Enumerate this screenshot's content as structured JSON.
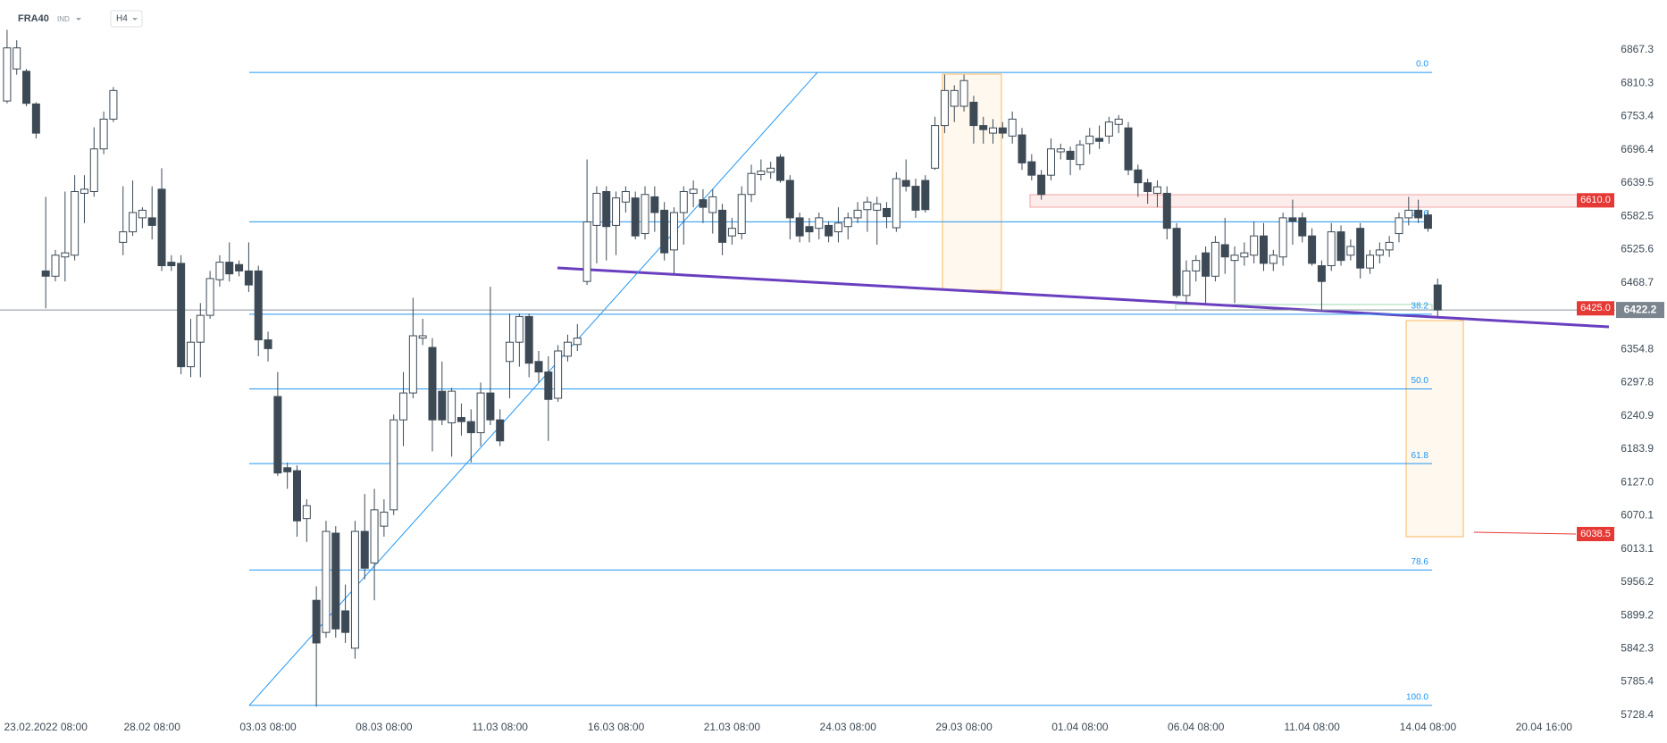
{
  "header": {
    "symbol": "FRA40",
    "market": "IND",
    "timeframe": "H4"
  },
  "chart_data": {
    "type": "candlestick",
    "categories": [
      null,
      null,
      null,
      null,
      "23.02.2022 08:00",
      null,
      null,
      null,
      null,
      null,
      null,
      null,
      null,
      null,
      null,
      "28.02 08:00",
      null,
      null,
      null,
      null,
      null,
      null,
      null,
      null,
      null,
      null,
      null,
      "03.03 08:00",
      null,
      null,
      null,
      null,
      null,
      null,
      null,
      null,
      null,
      null,
      null,
      "08.03 08:00",
      null,
      null,
      null,
      null,
      null,
      null,
      null,
      null,
      null,
      null,
      null,
      "11.03 08:00",
      null,
      null,
      null,
      null,
      null,
      null,
      null,
      null,
      null,
      null,
      null,
      "16.03 08:00",
      null,
      null,
      null,
      null,
      null,
      null,
      null,
      null,
      null,
      null,
      null,
      "21.03 08:00",
      null,
      null,
      null,
      null,
      null,
      null,
      null,
      null,
      null,
      null,
      null,
      "24.03 08:00",
      null,
      null,
      null,
      null,
      null,
      null,
      null,
      null,
      null,
      null,
      null,
      "29.03 08:00",
      null,
      null,
      null,
      null,
      null,
      null,
      null,
      null,
      null,
      null,
      null,
      "01.04 08:00",
      null,
      null,
      null,
      null,
      null,
      null,
      null,
      null,
      null,
      null,
      null,
      "06.04 08:00",
      null,
      null,
      null,
      null,
      null,
      null,
      null,
      null,
      null,
      null,
      null,
      "11.04 08:00",
      null,
      null,
      null,
      null,
      null,
      null,
      null,
      null,
      null,
      null,
      null,
      "14.04 08:00",
      null,
      null,
      null,
      null,
      null,
      null,
      null,
      null,
      null,
      null,
      null,
      "20.04 16:00"
    ],
    "open": [
      6780,
      6835,
      6831,
      6775,
      6489,
      6480,
      6513,
      6516,
      6622,
      6625,
      6698,
      6749,
      6538,
      6556,
      6580,
      6580,
      6629,
      6504,
      6502,
      6325,
      6367,
      6413,
      6474,
      6504,
      6500,
      6489,
      6489,
      6371,
      6274,
      6152,
      6147,
      6065,
      5925,
      5870,
      6040,
      5907,
      5843,
      6043,
      5989,
      6052,
      6080,
      6234,
      6280,
      6374,
      6358,
      6283,
      6229,
      6238,
      6231,
      6212,
      6280,
      6234,
      6334,
      6367,
      6411,
      6334,
      6316,
      6271,
      6343,
      6363,
      6471,
      6567,
      6625,
      6567,
      6607,
      6614,
      6553,
      6616,
      6593,
      6525,
      6589,
      6622,
      6611,
      6589,
      6593,
      6549,
      6553,
      6620,
      6654,
      6658,
      6684,
      6644,
      6580,
      6565,
      6562,
      6567,
      6556,
      6565,
      6580,
      6594,
      6593,
      6596,
      6563,
      6644,
      6634,
      6644,
      6665,
      6738,
      6771,
      6771,
      6778,
      6738,
      6725,
      6734,
      6720,
      6722,
      6676,
      6653,
      6653,
      6693,
      6694,
      6671,
      6707,
      6716,
      6720,
      6740,
      6734,
      6662,
      6640,
      6622,
      6622,
      6562,
      6447,
      6489,
      6520,
      6480,
      6534,
      6507,
      6513,
      6516,
      6549,
      6502,
      6513,
      6580,
      6580,
      6549,
      6498,
      6498,
      6556,
      6516,
      6562,
      6494,
      6516,
      6525,
      6553,
      6580,
      6593,
      6585,
      6465,
      null,
      null,
      null,
      null,
      null,
      null,
      null,
      null,
      null,
      null,
      null
    ],
    "high": [
      6902,
      6884,
      6835,
      6778,
      6616,
      6525,
      6625,
      6653,
      6653,
      6735,
      6762,
      6804,
      6634,
      6644,
      6598,
      6634,
      6665,
      6516,
      6516,
      6407,
      6434,
      6489,
      6516,
      6538,
      6507,
      6538,
      6498,
      6385,
      6316,
      6161,
      6156,
      6098,
      5949,
      6061,
      6052,
      5952,
      6061,
      6107,
      6116,
      6098,
      6243,
      6316,
      6443,
      6407,
      6374,
      6334,
      6289,
      6262,
      6252,
      6298,
      6462,
      6252,
      6416,
      6416,
      6416,
      6352,
      6343,
      6362,
      6380,
      6398,
      6680,
      6634,
      6634,
      6625,
      6634,
      6625,
      6634,
      6634,
      6607,
      6598,
      6634,
      6644,
      6629,
      6629,
      6604,
      6580,
      6634,
      6671,
      6680,
      6676,
      6689,
      6653,
      6589,
      6580,
      6589,
      6574,
      6598,
      6589,
      6607,
      6616,
      6616,
      6607,
      6658,
      6680,
      6647,
      6653,
      6753,
      6825,
      6807,
      6825,
      6789,
      6753,
      6749,
      6744,
      6762,
      6734,
      6689,
      6662,
      6716,
      6707,
      6702,
      6713,
      6734,
      6738,
      6753,
      6756,
      6744,
      6671,
      6647,
      6644,
      6634,
      6571,
      6507,
      6516,
      6531,
      6549,
      6580,
      6531,
      6538,
      6574,
      6571,
      6525,
      6589,
      6611,
      6589,
      6562,
      6507,
      6571,
      6567,
      6543,
      6571,
      6525,
      6538,
      6549,
      6589,
      6616,
      6611,
      6593,
      6476,
      null,
      null,
      null,
      null,
      null,
      null,
      null,
      null,
      null,
      null,
      null
    ],
    "low": [
      6776,
      6825,
      6771,
      6716,
      6425,
      6471,
      6471,
      6507,
      6571,
      6616,
      6689,
      6744,
      6516,
      6549,
      6562,
      6543,
      6489,
      6489,
      6312,
      6307,
      6307,
      6407,
      6462,
      6471,
      6480,
      6453,
      6343,
      6334,
      6138,
      6116,
      6034,
      6025,
      5743,
      5861,
      5861,
      5852,
      5825,
      5961,
      5925,
      6034,
      6071,
      6189,
      6271,
      6362,
      6180,
      6225,
      6171,
      6207,
      6161,
      6189,
      6225,
      6189,
      6271,
      6325,
      6307,
      6298,
      6198,
      6265,
      6334,
      6352,
      6465,
      6502,
      6507,
      6516,
      6589,
      6543,
      6543,
      6556,
      6507,
      6484,
      6534,
      6598,
      6571,
      6553,
      6516,
      6534,
      6543,
      6607,
      6644,
      6647,
      6640,
      6543,
      6538,
      6538,
      6543,
      6538,
      6538,
      6543,
      6571,
      6556,
      6534,
      6562,
      6556,
      6625,
      6580,
      6589,
      6662,
      6725,
      6744,
      6762,
      6707,
      6707,
      6707,
      6716,
      6707,
      6662,
      6644,
      6611,
      6644,
      6680,
      6653,
      6662,
      6689,
      6698,
      6707,
      6725,
      6653,
      6616,
      6604,
      6598,
      6543,
      6443,
      6434,
      6471,
      6434,
      6471,
      6484,
      6434,
      6498,
      6502,
      6489,
      6489,
      6498,
      6534,
      6538,
      6498,
      6422,
      6489,
      6498,
      6507,
      6476,
      6484,
      6502,
      6513,
      6538,
      6567,
      6571,
      6556,
      6411,
      null,
      null,
      null,
      null,
      null,
      null,
      null,
      null,
      null,
      null,
      null
    ],
    "close": [
      6871,
      6871,
      6776,
      6725,
      6480,
      6516,
      6520,
      6625,
      6629,
      6698,
      6749,
      6798,
      6556,
      6589,
      6593,
      6567,
      6498,
      6498,
      6325,
      6367,
      6413,
      6476,
      6504,
      6484,
      6489,
      6465,
      6371,
      6356,
      6143,
      6145,
      6061,
      6087,
      5852,
      6043,
      5876,
      5870,
      6043,
      5980,
      6080,
      6076,
      6234,
      6280,
      6378,
      6378,
      6234,
      6234,
      6283,
      6231,
      6212,
      6280,
      6234,
      6198,
      6367,
      6411,
      6331,
      6316,
      6269,
      6352,
      6367,
      6374,
      6573,
      6622,
      6565,
      6614,
      6625,
      6549,
      6620,
      6589,
      6520,
      6589,
      6625,
      6629,
      6598,
      6616,
      6538,
      6562,
      6620,
      6656,
      6660,
      6665,
      6644,
      6580,
      6549,
      6556,
      6580,
      6549,
      6571,
      6580,
      6593,
      6607,
      6604,
      6582,
      6647,
      6634,
      6593,
      6594,
      6738,
      6798,
      6798,
      6815,
      6738,
      6731,
      6734,
      6725,
      6749,
      6674,
      6653,
      6620,
      6698,
      6698,
      6680,
      6705,
      6720,
      6711,
      6744,
      6749,
      6662,
      6640,
      6625,
      6633,
      6562,
      6447,
      6489,
      6507,
      6480,
      6538,
      6513,
      6516,
      6520,
      6549,
      6502,
      6516,
      6580,
      6574,
      6549,
      6502,
      6471,
      6556,
      6507,
      6531,
      6494,
      6516,
      6525,
      6538,
      6580,
      6593,
      6580,
      6562,
      6422.2,
      null,
      null,
      null,
      null,
      null,
      null,
      null,
      null,
      null,
      null,
      null
    ],
    "up_color": "#ffffff",
    "down_color": "#3d4a56",
    "ylim": [
      5725,
      6953
    ],
    "yticks": [
      5728.4,
      5785.4,
      5842.3,
      5899.2,
      5956.2,
      6013.1,
      6070.1,
      {
        "value": 6127,
        "label": "6127.0"
      },
      6183.9,
      6240.9,
      6297.8,
      6354.8,
      6468.7,
      6525.6,
      6582.5,
      6639.5,
      6696.4,
      6753.4,
      6810.3,
      6867.3
    ],
    "last_price": {
      "value": 6422.2,
      "label": "6422.2"
    },
    "levels": [
      {
        "value": 6610,
        "label": "6610.0"
      },
      {
        "value": 6425,
        "label": "6425.0"
      },
      {
        "value": 6038.5,
        "label": "6038.5"
      }
    ],
    "fibonacci": {
      "high": 6829,
      "low": 5745,
      "color": "#2196f3",
      "levels": [
        {
          "value": 0,
          "label": "0.0"
        },
        {
          "value": 23.6,
          "label": "23.6"
        },
        {
          "value": 38.2,
          "label": "38.2"
        },
        {
          "value": 50,
          "label": "50.0"
        },
        {
          "value": 61.8,
          "label": "61.8"
        },
        {
          "value": 78.6,
          "label": "78.6"
        },
        {
          "value": 100,
          "label": "100.0"
        }
      ]
    }
  }
}
